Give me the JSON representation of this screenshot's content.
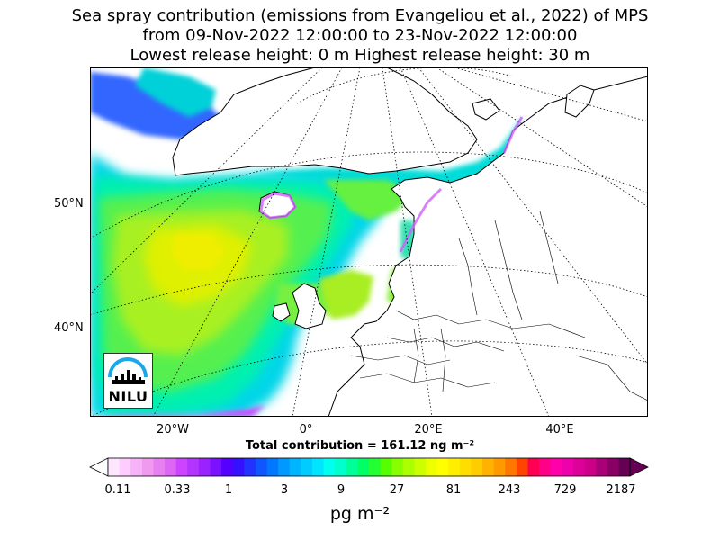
{
  "title": {
    "line1": "Sea spray contribution (emissions from Evangeliou et al., 2022) of MPS",
    "line2": "from 09-Nov-2022 12:00:00 to 23-Nov-2022 12:00:00",
    "line3": "Lowest release height: 0 m      Highest release height: 30 m"
  },
  "map": {
    "lat_labels": [
      "50°N",
      "40°N"
    ],
    "lon_labels": [
      "20°W",
      "0°",
      "20°E",
      "40°E"
    ],
    "total_contribution": "Total contribution = 161.12 ng m⁻²",
    "logo_text": "NILU"
  },
  "colorbar": {
    "tick_labels": [
      "0.11",
      "0.33",
      "1",
      "3",
      "9",
      "27",
      "81",
      "243",
      "729",
      "2187"
    ],
    "units": "pg m⁻²",
    "colors": [
      "#ffe6ff",
      "#ffccff",
      "#f7b3f7",
      "#ef99ef",
      "#e680f0",
      "#dd66f5",
      "#cc44ff",
      "#b333ff",
      "#9a22ff",
      "#7a11ff",
      "#5500ff",
      "#3311ff",
      "#2233ff",
      "#1155ff",
      "#0077ff",
      "#0099ff",
      "#00b5ff",
      "#00ccff",
      "#00e5ff",
      "#00ffee",
      "#00ffcc",
      "#00ff99",
      "#00ff66",
      "#22ff33",
      "#55ff00",
      "#88ff00",
      "#aaff00",
      "#ccff00",
      "#eeff00",
      "#ffff00",
      "#ffee00",
      "#ffdd00",
      "#ffcc00",
      "#ffb300",
      "#ff9900",
      "#ff7700",
      "#ff4400",
      "#ff0055",
      "#ff0088",
      "#ff00aa",
      "#ee00aa",
      "#dd0099",
      "#cc0088",
      "#aa0077",
      "#880066",
      "#660055"
    ]
  }
}
